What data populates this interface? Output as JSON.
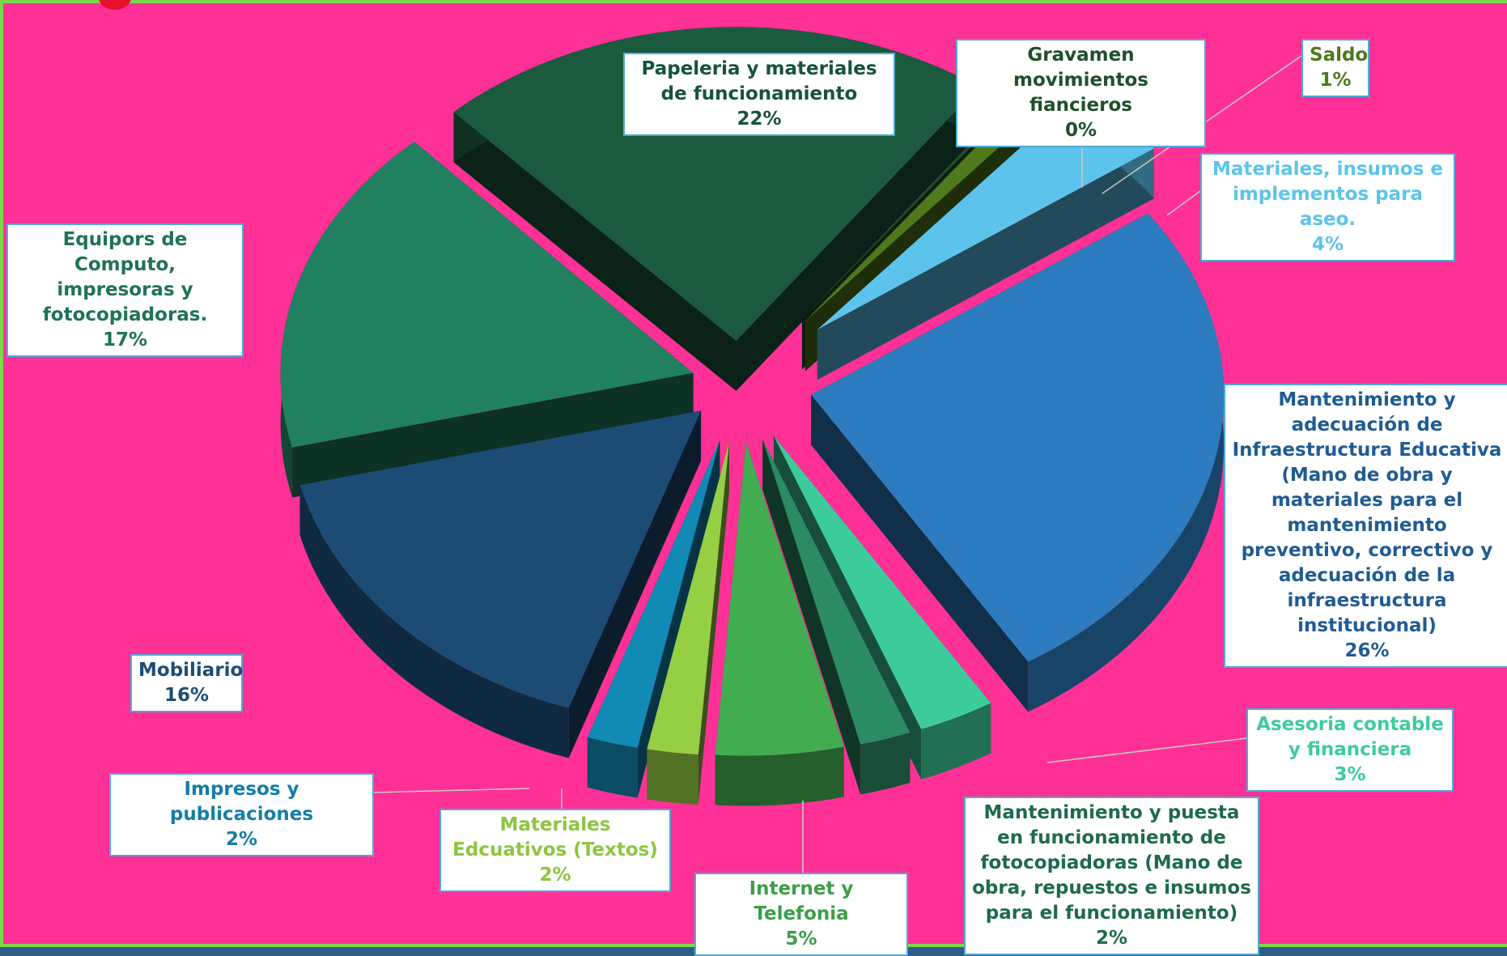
{
  "chart_data": {
    "type": "pie",
    "variant": "3d-exploded",
    "title": "",
    "slices": [
      {
        "label": "Papeleria y materiales de funcionamiento",
        "value": 22,
        "pct_label": "22%",
        "color": "#1b5a3f",
        "text_color": "#17523a"
      },
      {
        "label": "Gravamen movimientos fiancieros",
        "value": 0,
        "pct_label": "0%",
        "color": "#1f4f2c",
        "text_color": "#1f4f2c"
      },
      {
        "label": "Saldo",
        "value": 1,
        "pct_label": "1%",
        "color": "#4e7a1c",
        "text_color": "#4e7a1c"
      },
      {
        "label": "Materiales, insumos e implementos para aseo.",
        "value": 4,
        "pct_label": "4%",
        "color": "#5cc4ec",
        "text_color": "#5cc4ec"
      },
      {
        "label": "Mantenimiento y adecuación de Infraestructura Educativa (Mano de obra y materiales para el mantenimiento preventivo, correctivo y adecuación de la infraestructura institucional)",
        "value": 26,
        "pct_label": "26%",
        "color": "#2c7cbf",
        "text_color": "#1f5b93"
      },
      {
        "label": "Asesoria contable y financiera",
        "value": 3,
        "pct_label": "3%",
        "color": "#3ccc9c",
        "text_color": "#3ccc9c"
      },
      {
        "label": "Mantenimiento  y puesta en funcionamiento de fotocopiadoras (Mano de obra, repuestos e insumos para el funcionamiento)",
        "value": 2,
        "pct_label": "2%",
        "color": "#2b8c64",
        "text_color": "#1d6a49"
      },
      {
        "label": "Internet y Telefonia",
        "value": 5,
        "pct_label": "5%",
        "color": "#41ad50",
        "text_color": "#3a9f47"
      },
      {
        "label": "Materiales Edcuativos (Textos)",
        "value": 2,
        "pct_label": "2%",
        "color": "#95cf44",
        "text_color": "#8cc63e"
      },
      {
        "label": "Impresos y publicaciones",
        "value": 2,
        "pct_label": "2%",
        "color": "#128ab6",
        "text_color": "#137ea8"
      },
      {
        "label": "Mobiliario",
        "value": 16,
        "pct_label": "16%",
        "color": "#1c4c74",
        "text_color": "#1c4c74"
      },
      {
        "label": "Equipors de Computo, impresoras y fotocopiadoras.",
        "value": 17,
        "pct_label": "17%",
        "color": "#218060",
        "text_color": "#1f7256"
      }
    ]
  }
}
